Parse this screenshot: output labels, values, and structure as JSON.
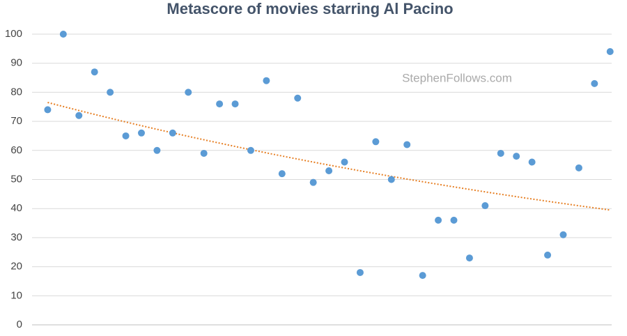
{
  "chart_data": {
    "type": "scatter",
    "title": "Metascore of movies starring Al Pacino",
    "annotation": "StephenFollows.com",
    "x": [
      1,
      2,
      3,
      4,
      5,
      6,
      7,
      8,
      9,
      10,
      11,
      12,
      13,
      14,
      15,
      16,
      17,
      18,
      19,
      20,
      21,
      22,
      23,
      24,
      25,
      26,
      27,
      28,
      29,
      30,
      31,
      32,
      33,
      34,
      35,
      36,
      37
    ],
    "values": [
      74,
      100,
      72,
      87,
      80,
      65,
      66,
      60,
      66,
      80,
      59,
      76,
      76,
      60,
      84,
      52,
      78,
      49,
      53,
      56,
      18,
      63,
      50,
      62,
      17,
      36,
      36,
      23,
      41,
      59,
      58,
      56,
      24,
      31,
      54,
      83,
      94
    ],
    "color": "#5b9bd5",
    "trendline": {
      "kind": "exponential",
      "color": "#e67e22",
      "values": [
        76.5,
        39.5
      ]
    },
    "xlim": [
      0,
      37.1
    ],
    "ylim": [
      0,
      100
    ],
    "yticks": [
      0,
      10,
      20,
      30,
      40,
      50,
      60,
      70,
      80,
      90,
      100
    ],
    "grid": true
  }
}
